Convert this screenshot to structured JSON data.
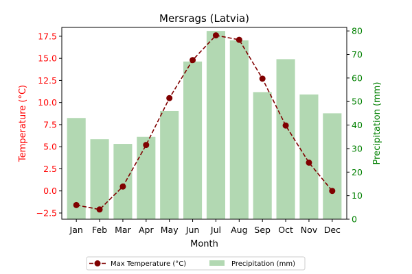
{
  "chart_data": {
    "type": "bar+line",
    "title": "Mersrags (Latvia)",
    "xlabel": "Month",
    "ylabel_left": "Temperature (°C)",
    "ylabel_right": "Precipitation (mm)",
    "categories": [
      "Jan",
      "Feb",
      "Mar",
      "Apr",
      "May",
      "Jun",
      "Jul",
      "Aug",
      "Sep",
      "Oct",
      "Nov",
      "Dec"
    ],
    "series": [
      {
        "name": "Max Temperature (°C)",
        "type": "line",
        "axis": "left",
        "values": [
          -1.6,
          -2.1,
          0.5,
          5.2,
          10.5,
          14.8,
          17.6,
          17.1,
          12.7,
          7.4,
          3.2,
          0.0
        ]
      },
      {
        "name": "Precipitation (mm)",
        "type": "bar",
        "axis": "right",
        "values": [
          43,
          34,
          32,
          35,
          46,
          67,
          80,
          76,
          54,
          68,
          53,
          45
        ]
      }
    ],
    "ylim_left": [
      -3.2,
      18.5
    ],
    "ylim_right": [
      0,
      81.5
    ],
    "yticks_left": [
      "−2.5",
      "0.0",
      "2.5",
      "5.0",
      "7.5",
      "10.0",
      "12.5",
      "15.0",
      "17.5"
    ],
    "yticks_right": [
      "0",
      "10",
      "20",
      "30",
      "40",
      "50",
      "60",
      "70",
      "80"
    ],
    "legend_position": "bottom-center",
    "grid": false,
    "colors": {
      "temperature_line": "#800000",
      "temperature_axis": "#ff0000",
      "precipitation_bar": "#b2d8b2",
      "precipitation_axis": "#008000"
    }
  }
}
